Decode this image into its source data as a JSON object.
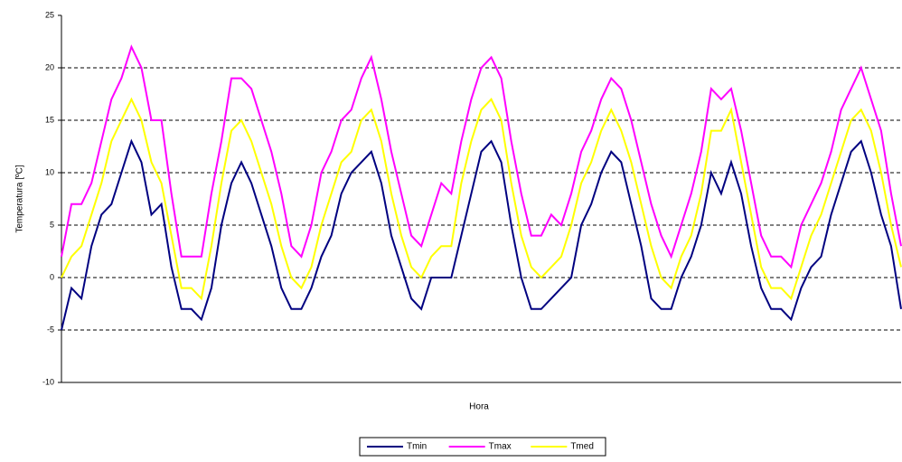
{
  "chart_data": {
    "type": "line",
    "y_label": "Temperatura [ºC]",
    "x_label": "Hora",
    "categories": [
      null,
      null,
      null,
      null,
      null,
      null,
      null,
      null,
      null,
      null,
      null,
      null,
      null,
      null,
      null,
      null,
      null,
      null,
      null,
      null,
      null,
      null,
      null,
      null,
      null,
      null,
      null,
      null,
      null,
      null,
      null,
      null,
      null,
      null,
      null,
      null,
      null,
      null,
      null,
      null,
      null,
      null,
      null,
      null,
      null,
      null,
      null,
      null,
      null,
      null,
      null,
      null,
      null,
      null,
      null,
      null,
      null,
      null,
      null,
      null,
      null,
      null,
      null,
      null,
      null,
      null,
      null,
      null,
      null,
      null,
      null,
      null,
      null,
      null,
      null,
      null,
      null,
      null,
      null,
      null,
      null,
      null,
      null,
      null,
      null
    ],
    "series": [
      {
        "name": "Tmin",
        "color": "#000080",
        "values": [
          -5,
          -1,
          -2,
          3,
          6,
          7,
          10,
          13,
          11,
          6,
          7,
          1,
          -3,
          -3,
          -4,
          -1,
          5,
          9,
          11,
          9,
          6,
          3,
          -1,
          -3,
          -3,
          -1,
          2,
          4,
          8,
          10,
          11,
          12,
          9,
          4,
          1,
          -2,
          -3,
          0,
          0,
          0,
          4,
          8,
          12,
          13,
          11,
          5,
          0,
          -3,
          -3,
          -2,
          -1,
          0,
          5,
          7,
          10,
          12,
          11,
          7,
          3,
          -2,
          -3,
          -3,
          0,
          2,
          5,
          10,
          8,
          11,
          8,
          3,
          -1,
          -3,
          -3,
          -4,
          -1,
          1,
          2,
          6,
          9,
          12,
          13,
          10,
          6,
          3,
          -3
        ]
      },
      {
        "name": "Tmax",
        "color": "#ff00ff",
        "values": [
          2,
          7,
          7,
          9,
          13,
          17,
          19,
          22,
          20,
          15,
          15,
          8,
          2,
          2,
          2,
          8,
          13,
          19,
          19,
          18,
          15,
          12,
          8,
          3,
          2,
          5,
          10,
          12,
          15,
          16,
          19,
          21,
          17,
          12,
          8,
          4,
          3,
          6,
          9,
          8,
          13,
          17,
          20,
          21,
          19,
          13,
          8,
          4,
          4,
          6,
          5,
          8,
          12,
          14,
          17,
          19,
          18,
          15,
          11,
          7,
          4,
          2,
          5,
          8,
          12,
          18,
          17,
          18,
          14,
          9,
          4,
          2,
          2,
          1,
          5,
          7,
          9,
          12,
          16,
          18,
          20,
          17,
          14,
          8,
          3
        ]
      },
      {
        "name": "Tmed",
        "color": "#ffff00",
        "values": [
          0,
          2,
          3,
          6,
          9,
          13,
          15,
          17,
          15,
          11,
          9,
          4,
          -1,
          -1,
          -2,
          3,
          9,
          14,
          15,
          13,
          10,
          7,
          3,
          0,
          -1,
          1,
          5,
          8,
          11,
          12,
          15,
          16,
          13,
          8,
          4,
          1,
          0,
          2,
          3,
          3,
          9,
          13,
          16,
          17,
          15,
          9,
          4,
          1,
          0,
          1,
          2,
          5,
          9,
          11,
          14,
          16,
          14,
          11,
          7,
          3,
          0,
          -1,
          2,
          4,
          8,
          14,
          14,
          16,
          11,
          6,
          1,
          -1,
          -1,
          -2,
          1,
          4,
          6,
          9,
          12,
          15,
          16,
          14,
          10,
          5,
          1
        ]
      }
    ],
    "ylim": [
      -10,
      25
    ],
    "yticks": [
      -10,
      -5,
      0,
      5,
      10,
      15,
      20,
      25
    ],
    "grid": true,
    "legend": "bottom"
  }
}
